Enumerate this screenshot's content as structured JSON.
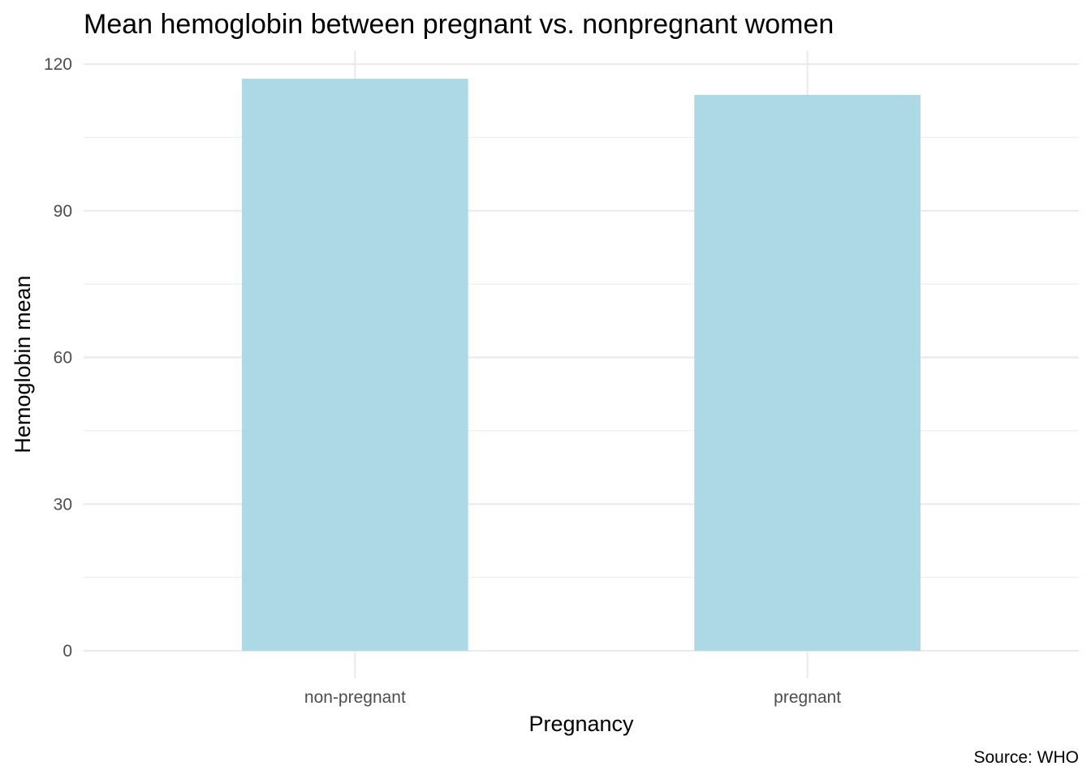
{
  "chart_data": {
    "type": "bar",
    "title": "Mean hemoglobin between pregnant vs. nonpregnant women",
    "xlabel": "Pregnancy",
    "ylabel": "Hemoglobin mean",
    "caption": "Source: WHO",
    "categories": [
      "non-pregnant",
      "pregnant"
    ],
    "values": [
      117.0,
      113.7
    ],
    "ylim": [
      0,
      120
    ],
    "yticks": [
      0,
      30,
      60,
      90,
      120
    ],
    "grid": true,
    "legend": "none",
    "bar_color": "#add8e6"
  }
}
